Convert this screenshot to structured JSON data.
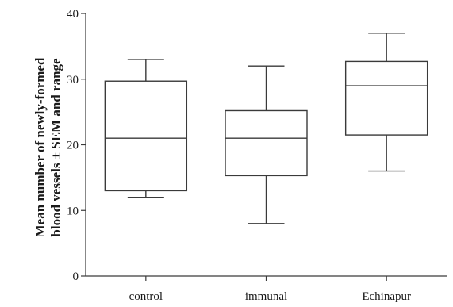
{
  "chart_data": {
    "type": "box",
    "categories": [
      "control",
      "immunal",
      "Echinapur"
    ],
    "boxes": [
      {
        "category": "control",
        "min": 12,
        "q1": 13,
        "median": 21,
        "q3": 29.7,
        "max": 33
      },
      {
        "category": "immunal",
        "min": 8,
        "q1": 15.3,
        "median": 21,
        "q3": 25.2,
        "max": 32
      },
      {
        "category": "Echinapur",
        "min": 16,
        "q1": 21.5,
        "median": 29,
        "q3": 32.7,
        "max": 37
      }
    ],
    "title": "",
    "xlabel": "",
    "ylabel_lines": [
      "Mean number of newly-formed",
      "blood vessels ± SEM and range"
    ],
    "ylim": [
      0,
      40
    ],
    "yticks": [
      0,
      10,
      20,
      30,
      40
    ],
    "grid": false,
    "legend": "none"
  }
}
